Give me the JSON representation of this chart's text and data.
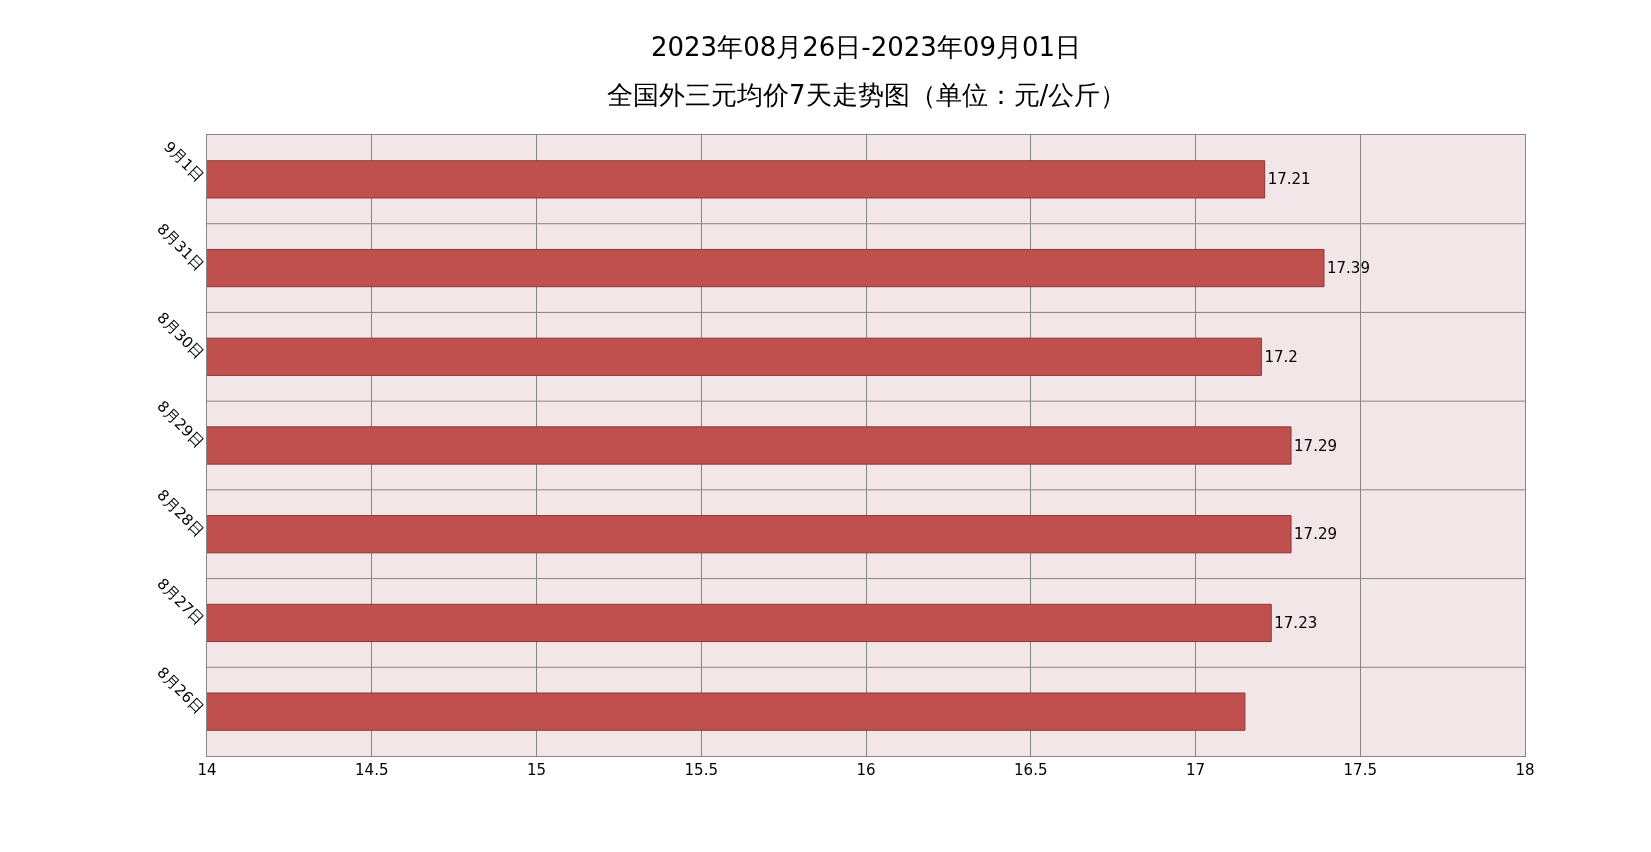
{
  "chart_data": {
    "type": "bar",
    "orientation": "horizontal",
    "title": "2023年08月26日-2023年09月01日",
    "subtitle": "全国外三元均价7天走势图（单位：元/公斤）",
    "categories": [
      "9月1日",
      "8月31日",
      "8月30日",
      "8月29日",
      "8月28日",
      "8月27日",
      "8月26日"
    ],
    "values": [
      17.21,
      17.39,
      17.2,
      17.29,
      17.29,
      17.23,
      17.15
    ],
    "value_labels": [
      "17.21",
      "17.39",
      "17.2",
      "17.29",
      "17.29",
      "17.23",
      null
    ],
    "color": "#c0504d",
    "xlim": [
      14,
      18
    ],
    "xticks": [
      14,
      14.5,
      15,
      15.5,
      16,
      16.5,
      17,
      17.5,
      18
    ],
    "grid": true,
    "legend": false
  }
}
